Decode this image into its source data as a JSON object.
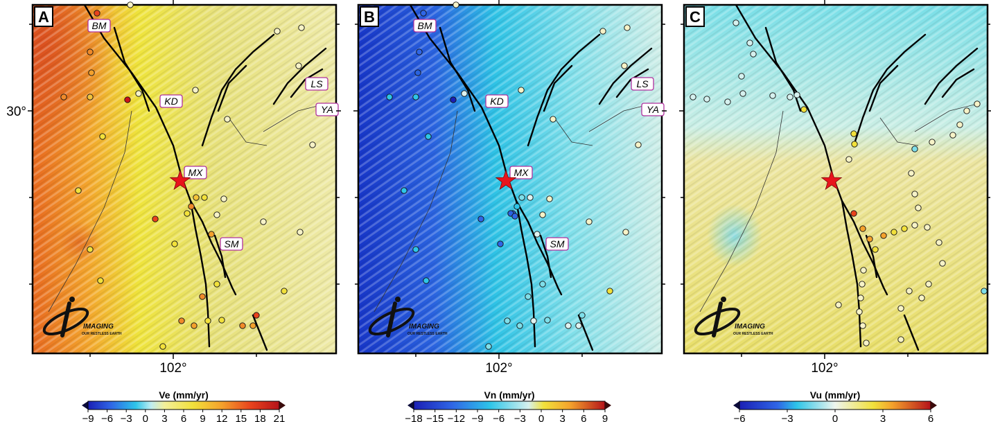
{
  "panels": [
    {
      "letter": "A",
      "colorbar_label": "Ve (mm/yr)",
      "colorbar_ticks": [
        "−9",
        "−6",
        "−3",
        "0",
        "3",
        "6",
        "9",
        "12",
        "15",
        "18",
        "21"
      ],
      "palette": "east"
    },
    {
      "letter": "B",
      "colorbar_label": "Vn (mm/yr)",
      "colorbar_ticks": [
        "−18",
        "−15",
        "−12",
        "−9",
        "−6",
        "−3",
        "0",
        "3",
        "6",
        "9"
      ],
      "palette": "north"
    },
    {
      "letter": "C",
      "colorbar_label": "Vu (mm/yr)",
      "colorbar_ticks": [
        "−6",
        "−3",
        "0",
        "3",
        "6"
      ],
      "palette": "up"
    }
  ],
  "axis": {
    "lon_tick": "102°",
    "lat_tick": "30°"
  },
  "place_labels": [
    "BM",
    "KD",
    "MX",
    "SM",
    "LS",
    "YA"
  ],
  "logo": {
    "name": "IMAGING",
    "tagline": "OUR RESTLESS EARTH"
  },
  "epicenter_marker": "red-star",
  "colors": {
    "frame": "#000000",
    "label_border": "#b0309e",
    "star": "#e8141c",
    "fault": "#000000"
  }
}
